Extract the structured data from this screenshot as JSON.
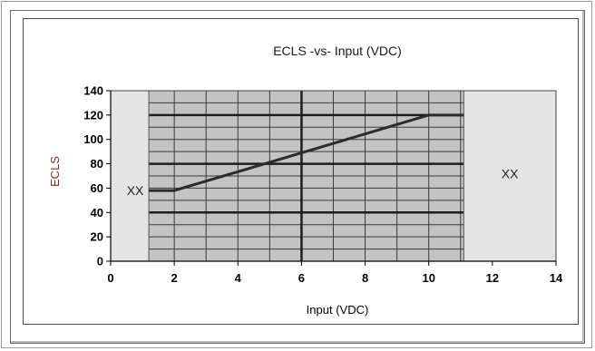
{
  "chart_data": {
    "type": "line",
    "title": "ECLS -vs- Input (VDC)",
    "xlabel": "Input (VDC)",
    "ylabel": "ECLS",
    "xlim": [
      0,
      14
    ],
    "ylim": [
      0,
      140
    ],
    "xticks": [
      0,
      2,
      4,
      6,
      8,
      10,
      12,
      14
    ],
    "yticks": [
      0,
      20,
      40,
      60,
      80,
      100,
      120,
      140
    ],
    "grid": true,
    "legend": "none",
    "series": [
      {
        "values": [
          [
            1.2,
            58
          ],
          [
            2,
            58
          ],
          [
            10,
            120
          ],
          [
            11.1,
            120
          ]
        ]
      }
    ],
    "regions": [
      {
        "label": "XX",
        "x": [
          0,
          1.2
        ]
      },
      {
        "label": "XX",
        "x": [
          11.1,
          14
        ]
      }
    ],
    "colors": {
      "plot_bg": "#c3c3c3",
      "region_bg": "#e4e4e4",
      "line": "#2b2b2b",
      "ylabel": "#8b2b2b"
    }
  }
}
